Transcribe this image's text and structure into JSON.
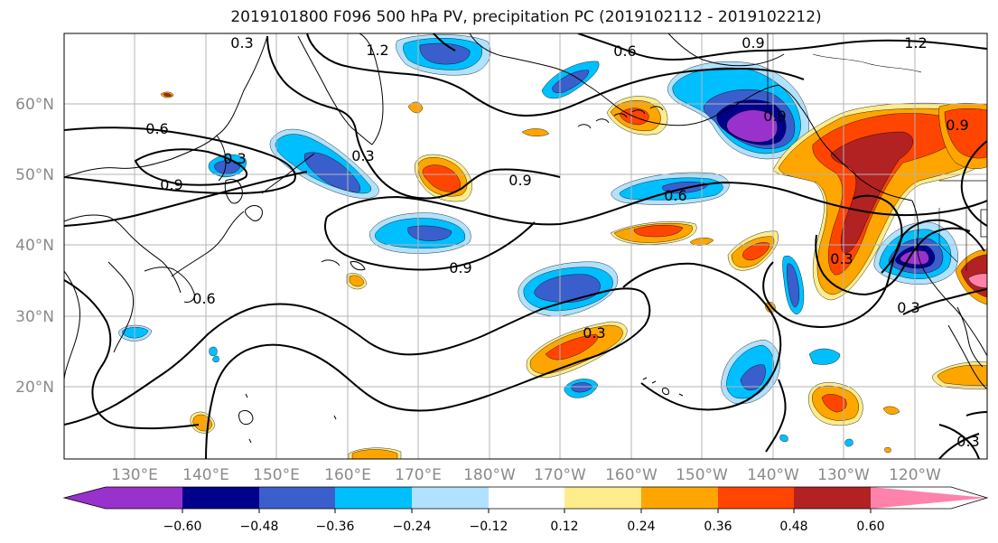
{
  "title": "2019101800 F096 500 hPa PV, precipitation PC (2019102112 - 2019102212)",
  "lat_labels": [
    "60°N",
    "50°N",
    "40°N",
    "30°N",
    "20°N"
  ],
  "lon_labels": [
    "130°E",
    "140°E",
    "150°E",
    "160°E",
    "170°E",
    "180°W",
    "170°W",
    "160°W",
    "150°W",
    "140°W",
    "130°W",
    "120°W"
  ],
  "contour_labels": [
    "0.3",
    "1.2",
    "0.6",
    "0.9",
    "1.2",
    "0.6",
    "0.9",
    "0.3",
    "0.9",
    "0.6",
    "0.9",
    "0.9",
    "0.9",
    "0.3",
    "0.3",
    "0.6",
    "0.3",
    "0.3",
    "0.3"
  ],
  "colorbar": {
    "tick_labels": [
      "−0.60",
      "−0.48",
      "−0.36",
      "−0.24",
      "−0.12",
      "0.12",
      "0.24",
      "0.36",
      "0.48",
      "0.60"
    ],
    "colors": [
      "#9932cc",
      "#00008b",
      "#3a5fcd",
      "#00bfff",
      "#b0e2ff",
      "#ffffff",
      "#ffec8b",
      "#ffa500",
      "#ff4500",
      "#b22222",
      "#ff82ab"
    ]
  },
  "colors": {
    "neg_extreme": "#9932cc",
    "neg_5": "#00008b",
    "neg_4": "#3a5fcd",
    "neg_3": "#00bfff",
    "neg_2": "#b0e2ff",
    "pos_2": "#ffec8b",
    "pos_3": "#ffa500",
    "pos_4": "#ff4500",
    "pos_5": "#b22222",
    "pos_extreme": "#ff82ab",
    "contour": "#000000",
    "grid": "#b4b4b4",
    "coast": "#000000"
  }
}
